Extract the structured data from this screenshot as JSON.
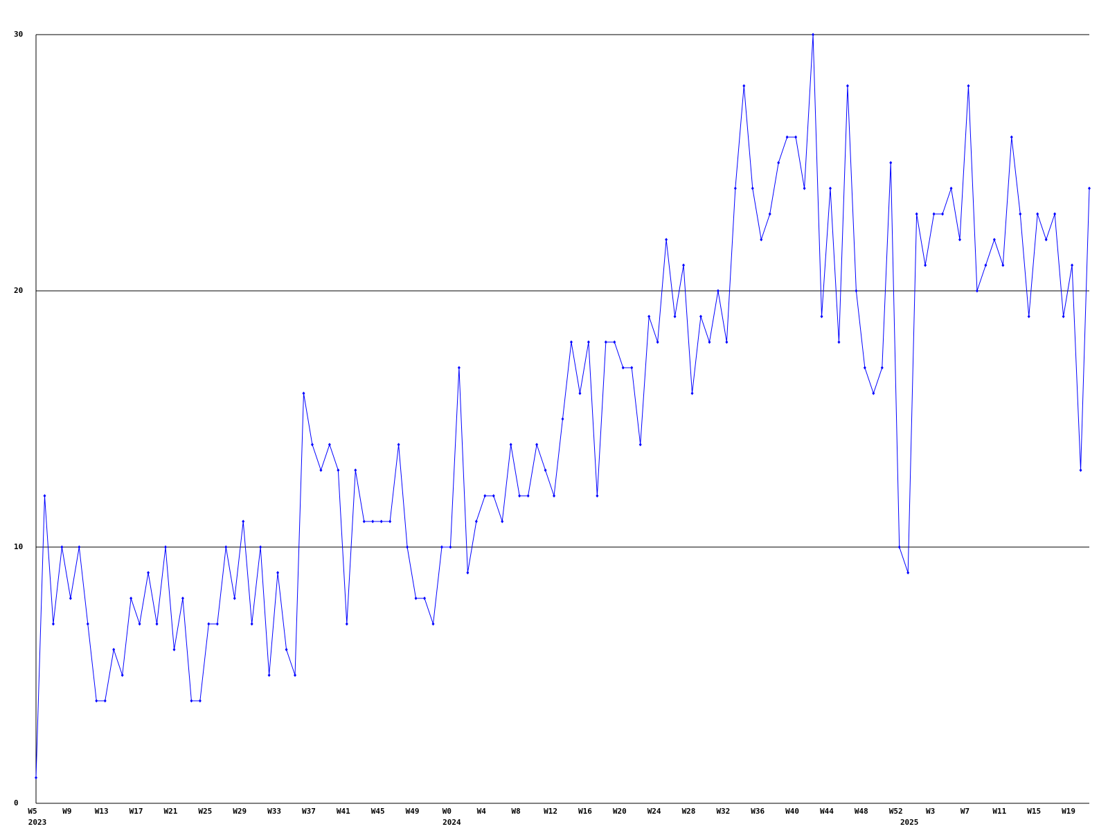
{
  "chart_data": {
    "type": "line",
    "categories": [
      "W5",
      null,
      null,
      null,
      "W9",
      null,
      null,
      null,
      "W13",
      null,
      null,
      null,
      "W17",
      null,
      null,
      null,
      "W21",
      null,
      null,
      null,
      "W25",
      null,
      null,
      null,
      "W29",
      null,
      null,
      null,
      "W33",
      null,
      null,
      null,
      "W37",
      null,
      null,
      null,
      "W41",
      null,
      null,
      null,
      "W45",
      null,
      null,
      null,
      "W49",
      null,
      null,
      null,
      "W0",
      null,
      null,
      null,
      "W4",
      null,
      null,
      null,
      "W8",
      null,
      null,
      null,
      "W12",
      null,
      null,
      null,
      "W16",
      null,
      null,
      null,
      "W20",
      null,
      null,
      null,
      "W24",
      null,
      null,
      null,
      "W28",
      null,
      null,
      null,
      "W32",
      null,
      null,
      null,
      "W36",
      null,
      null,
      null,
      "W40",
      null,
      null,
      null,
      "W44",
      null,
      null,
      null,
      "W48",
      null,
      null,
      null,
      "W52",
      null,
      null,
      null,
      "W3",
      null,
      null,
      null,
      "W7",
      null,
      null,
      null,
      "W11",
      null,
      null,
      null,
      "W15",
      null,
      null,
      null,
      "W19",
      null,
      null
    ],
    "x_groups": [
      {
        "label": "2023",
        "start": 0
      },
      {
        "label": "2024",
        "start": 48
      },
      {
        "label": "2025",
        "start": 101
      }
    ],
    "series": [
      {
        "color": "#0000ff",
        "values": [
          1,
          12,
          7,
          10,
          8,
          10,
          7,
          4,
          4,
          6,
          5,
          8,
          7,
          9,
          7,
          10,
          6,
          8,
          4,
          4,
          7,
          7,
          10,
          8,
          11,
          7,
          10,
          5,
          9,
          6,
          5,
          16,
          14,
          13,
          14,
          13,
          7,
          13,
          11,
          11,
          11,
          11,
          14,
          10,
          8,
          8,
          7,
          10,
          10,
          17,
          9,
          11,
          12,
          12,
          11,
          14,
          12,
          12,
          14,
          13,
          12,
          15,
          18,
          16,
          18,
          12,
          18,
          18,
          17,
          17,
          14,
          19,
          18,
          22,
          19,
          21,
          16,
          19,
          18,
          20,
          18,
          24,
          28,
          24,
          22,
          23,
          25,
          26,
          26,
          24,
          30,
          19,
          24,
          18,
          28,
          20,
          17,
          16,
          17,
          25,
          10,
          9,
          23,
          21,
          23,
          23,
          24,
          22,
          28,
          20,
          21,
          22,
          21,
          26,
          23,
          19,
          23,
          22,
          23,
          19,
          21,
          13,
          24
        ]
      }
    ],
    "ylim": [
      0,
      30
    ],
    "yticks": [
      0,
      10,
      20,
      30
    ],
    "grid": true
  }
}
